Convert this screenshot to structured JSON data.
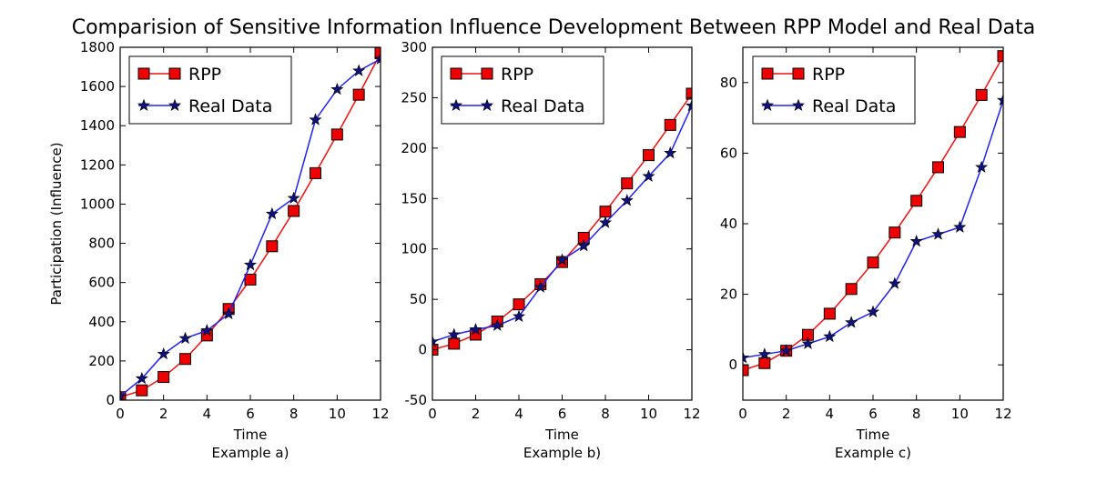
{
  "suptitle": "Comparision of Sensitive Information Influence Development Between RPP Model and Real Data",
  "colors": {
    "rpp": "#ee1111",
    "rpp_marker": "#ee0000",
    "real": "#2222ee",
    "real_marker": "#11117a"
  },
  "chart_data": [
    {
      "type": "line",
      "title": "",
      "xlabel": "Time",
      "caption": "Example a)",
      "ylabel": "Participation (Influence)",
      "xlim": [
        0,
        12
      ],
      "ylim": [
        0,
        1800
      ],
      "xticks": [
        0,
        2,
        4,
        6,
        8,
        10,
        12
      ],
      "yticks": [
        0,
        200,
        400,
        600,
        800,
        1000,
        1200,
        1400,
        1600,
        1800
      ],
      "legend": "top-left",
      "grid": false,
      "series": [
        {
          "name": "RPP",
          "marker": "square",
          "color": "red",
          "x": [
            0,
            1,
            2,
            3,
            4,
            5,
            6,
            7,
            8,
            9,
            10,
            11,
            12
          ],
          "y": [
            15,
            50,
            118,
            210,
            330,
            465,
            615,
            785,
            965,
            1158,
            1355,
            1558,
            1770
          ]
        },
        {
          "name": "Real Data",
          "marker": "star",
          "color": "blue",
          "x": [
            0,
            1,
            2,
            3,
            4,
            5,
            6,
            7,
            8,
            9,
            10,
            11,
            12
          ],
          "y": [
            20,
            110,
            235,
            315,
            355,
            440,
            690,
            950,
            1030,
            1430,
            1585,
            1680,
            1740
          ]
        }
      ]
    },
    {
      "type": "line",
      "title": "",
      "xlabel": "Time",
      "caption": "Example b)",
      "ylabel": "",
      "xlim": [
        0,
        12
      ],
      "ylim": [
        -50,
        300
      ],
      "xticks": [
        0,
        2,
        4,
        6,
        8,
        10,
        12
      ],
      "yticks": [
        -50,
        0,
        50,
        100,
        150,
        200,
        250,
        300
      ],
      "legend": "top-left",
      "grid": false,
      "series": [
        {
          "name": "RPP",
          "marker": "square",
          "color": "red",
          "x": [
            0,
            1,
            2,
            3,
            4,
            5,
            6,
            7,
            8,
            9,
            10,
            11,
            12
          ],
          "y": [
            0,
            6,
            15,
            28,
            45,
            65,
            87,
            111,
            137,
            165,
            193,
            223,
            254
          ]
        },
        {
          "name": "Real Data",
          "marker": "star",
          "color": "blue",
          "x": [
            0,
            1,
            2,
            3,
            4,
            5,
            6,
            7,
            8,
            9,
            10,
            11,
            12
          ],
          "y": [
            8,
            15,
            20,
            24,
            33,
            62,
            89,
            103,
            126,
            148,
            172,
            195,
            242
          ]
        }
      ]
    },
    {
      "type": "line",
      "title": "",
      "xlabel": "Time",
      "caption": "Example c)",
      "ylabel": "",
      "xlim": [
        0,
        12
      ],
      "ylim": [
        -10,
        90
      ],
      "xticks": [
        0,
        2,
        4,
        6,
        8,
        10,
        12
      ],
      "yticks": [
        0,
        20,
        40,
        60,
        80
      ],
      "legend": "top-left",
      "grid": false,
      "series": [
        {
          "name": "RPP",
          "marker": "square",
          "color": "red",
          "x": [
            0,
            1,
            2,
            3,
            4,
            5,
            6,
            7,
            8,
            9,
            10,
            11,
            12
          ],
          "y": [
            -1.5,
            0.5,
            4,
            8.5,
            14.5,
            21.5,
            29,
            37.5,
            46.5,
            56,
            66,
            76.5,
            87.5
          ]
        },
        {
          "name": "Real Data",
          "marker": "star",
          "color": "blue",
          "x": [
            0,
            1,
            2,
            3,
            4,
            5,
            6,
            7,
            8,
            9,
            10,
            11,
            12
          ],
          "y": [
            2,
            3,
            4,
            6,
            8,
            12,
            15,
            23,
            35,
            37,
            39,
            56,
            75
          ]
        }
      ]
    }
  ]
}
